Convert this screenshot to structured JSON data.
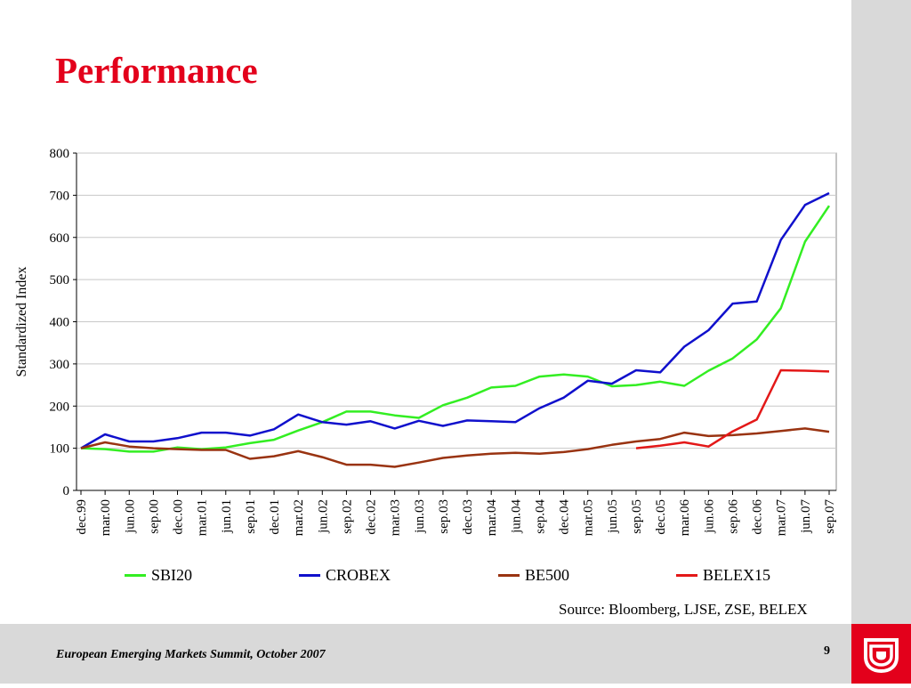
{
  "title": "Performance",
  "source": "Source: Bloomberg, LJSE, ZSE, BELEX",
  "footer": {
    "text": "European Emerging Markets Summit, October 2007",
    "page": "9"
  },
  "colors": {
    "accent": "#e3001b",
    "sidebar": "#d9d9d9"
  },
  "logo_icon": "hypo-bank-logo-icon",
  "chart_data": {
    "type": "line",
    "ylabel": "Standardized Index",
    "xlabel": "",
    "ylim": [
      0,
      800
    ],
    "yticks": [
      0,
      100,
      200,
      300,
      400,
      500,
      600,
      700,
      800
    ],
    "grid": true,
    "legend": "bottom",
    "categories": [
      "dec.99",
      "mar.00",
      "jun.00",
      "sep.00",
      "dec.00",
      "mar.01",
      "jun.01",
      "sep.01",
      "dec.01",
      "mar.02",
      "jun.02",
      "sep.02",
      "dec.02",
      "mar.03",
      "jun.03",
      "sep.03",
      "dec.03",
      "mar.04",
      "jun.04",
      "sep.04",
      "dec.04",
      "mar.05",
      "jun.05",
      "sep.05",
      "dec.05",
      "mar.06",
      "jun.06",
      "sep.06",
      "dec.06",
      "mar.07",
      "jun.07",
      "sep.07"
    ],
    "series": [
      {
        "name": "SBI20",
        "color": "#33ee22",
        "values": [
          100,
          98,
          92,
          92,
          102,
          98,
          102,
          112,
          120,
          142,
          162,
          187,
          187,
          178,
          172,
          202,
          220,
          244,
          248,
          270,
          275,
          270,
          247,
          250,
          258,
          248,
          284,
          313,
          358,
          432,
          590,
          675
        ]
      },
      {
        "name": "CROBEX",
        "color": "#1010cc",
        "values": [
          100,
          133,
          116,
          116,
          124,
          137,
          137,
          130,
          145,
          180,
          162,
          156,
          164,
          147,
          165,
          153,
          166,
          164,
          162,
          195,
          220,
          260,
          253,
          285,
          280,
          341,
          380,
          443,
          448,
          594,
          677,
          705
        ]
      },
      {
        "name": "BE500",
        "color": "#993311",
        "values": [
          100,
          114,
          104,
          100,
          98,
          96,
          96,
          75,
          81,
          93,
          79,
          61,
          61,
          56,
          66,
          77,
          83,
          87,
          89,
          87,
          91,
          98,
          108,
          116,
          122,
          137,
          129,
          131,
          135,
          141,
          147,
          139
        ]
      },
      {
        "name": "BELEX15",
        "color": "#e31818",
        "values": [
          null,
          null,
          null,
          null,
          null,
          null,
          null,
          null,
          null,
          null,
          null,
          null,
          null,
          null,
          null,
          null,
          null,
          null,
          null,
          null,
          null,
          null,
          null,
          100,
          106,
          114,
          104,
          140,
          168,
          285,
          284,
          282
        ]
      }
    ]
  }
}
